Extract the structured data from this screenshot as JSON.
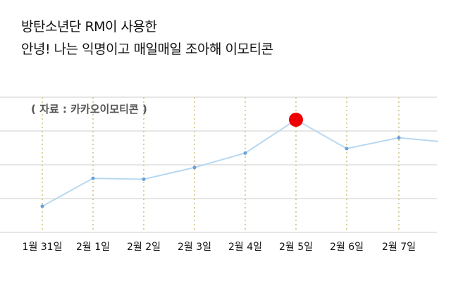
{
  "title": {
    "line1": "방탄소년단 RM이 사용한",
    "line2": "안녕! 나는 익명이고 매일매일 조아해 이모티콘"
  },
  "source_note": "( 자료 : 카카오이모티콘 )",
  "colors": {
    "line": "#b8d8f0",
    "point": "#6aa0dc",
    "highlight": "#ee0000",
    "grid": "#e6e6e6",
    "vgrid": "#d9cf9a"
  },
  "chart_data": {
    "type": "line",
    "categories": [
      "1월 31일",
      "2월 1일",
      "2월 2일",
      "2월 3일",
      "2월 4일",
      "2월 5일",
      "2월 6일",
      "2월 7일",
      ""
    ],
    "values": [
      29,
      60,
      59,
      72,
      88,
      125,
      93,
      105,
      101
    ],
    "highlight_index": 5,
    "ylim": [
      0,
      150
    ],
    "grid": true,
    "title": "",
    "xlabel": "",
    "ylabel": ""
  }
}
